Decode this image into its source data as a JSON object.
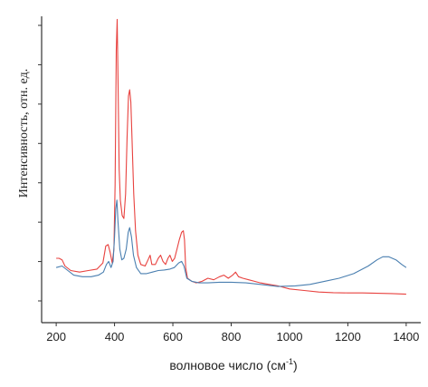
{
  "chart_data": {
    "type": "line",
    "title": "",
    "xlabel": "волновое число (см",
    "xlabel_sup": "-1",
    "xlabel_close": ")",
    "ylabel": "Интенсивность, отн. ед.",
    "xlim": [
      150,
      1450
    ],
    "ylim": [
      0,
      10
    ],
    "x_ticks": [
      200,
      400,
      600,
      800,
      1000,
      1200,
      1400
    ],
    "x_tick_labels": [
      "200",
      "400",
      "600",
      "800",
      "1000",
      "1200",
      "1400"
    ],
    "y_tick_count": 8,
    "y_tick_labels_shown": false,
    "grid": false,
    "legend": "none",
    "series": [
      {
        "color": "#e8423f",
        "points": [
          [
            200,
            2.1
          ],
          [
            210,
            2.1
          ],
          [
            220,
            2.05
          ],
          [
            230,
            1.85
          ],
          [
            250,
            1.7
          ],
          [
            280,
            1.65
          ],
          [
            310,
            1.7
          ],
          [
            340,
            1.75
          ],
          [
            360,
            1.95
          ],
          [
            370,
            2.5
          ],
          [
            378,
            2.55
          ],
          [
            385,
            2.3
          ],
          [
            392,
            1.95
          ],
          [
            398,
            2.4
          ],
          [
            402,
            4.5
          ],
          [
            406,
            8.9
          ],
          [
            409,
            9.9
          ],
          [
            412,
            8.0
          ],
          [
            416,
            5.0
          ],
          [
            420,
            4.0
          ],
          [
            426,
            3.5
          ],
          [
            432,
            3.4
          ],
          [
            438,
            4.2
          ],
          [
            443,
            6.0
          ],
          [
            448,
            7.4
          ],
          [
            452,
            7.6
          ],
          [
            456,
            7.2
          ],
          [
            460,
            6.0
          ],
          [
            466,
            4.2
          ],
          [
            472,
            3.0
          ],
          [
            480,
            2.2
          ],
          [
            490,
            1.9
          ],
          [
            505,
            1.85
          ],
          [
            515,
            2.05
          ],
          [
            522,
            2.2
          ],
          [
            528,
            1.9
          ],
          [
            540,
            1.9
          ],
          [
            550,
            2.1
          ],
          [
            558,
            2.2
          ],
          [
            566,
            2.0
          ],
          [
            575,
            1.9
          ],
          [
            583,
            2.1
          ],
          [
            590,
            2.2
          ],
          [
            598,
            2.0
          ],
          [
            606,
            2.1
          ],
          [
            614,
            2.4
          ],
          [
            622,
            2.7
          ],
          [
            630,
            2.95
          ],
          [
            636,
            3.0
          ],
          [
            640,
            2.7
          ],
          [
            644,
            1.8
          ],
          [
            650,
            1.45
          ],
          [
            665,
            1.35
          ],
          [
            680,
            1.3
          ],
          [
            700,
            1.35
          ],
          [
            720,
            1.45
          ],
          [
            740,
            1.4
          ],
          [
            760,
            1.5
          ],
          [
            775,
            1.55
          ],
          [
            790,
            1.45
          ],
          [
            805,
            1.55
          ],
          [
            815,
            1.65
          ],
          [
            825,
            1.5
          ],
          [
            840,
            1.45
          ],
          [
            860,
            1.4
          ],
          [
            880,
            1.35
          ],
          [
            900,
            1.3
          ],
          [
            930,
            1.25
          ],
          [
            960,
            1.2
          ],
          [
            1000,
            1.1
          ],
          [
            1050,
            1.05
          ],
          [
            1100,
            1.0
          ],
          [
            1150,
            0.98
          ],
          [
            1200,
            0.97
          ],
          [
            1250,
            0.97
          ],
          [
            1300,
            0.96
          ],
          [
            1350,
            0.95
          ],
          [
            1400,
            0.93
          ]
        ]
      },
      {
        "color": "#4a7fb0",
        "points": [
          [
            200,
            1.8
          ],
          [
            220,
            1.85
          ],
          [
            240,
            1.7
          ],
          [
            260,
            1.55
          ],
          [
            290,
            1.5
          ],
          [
            320,
            1.5
          ],
          [
            345,
            1.55
          ],
          [
            362,
            1.65
          ],
          [
            372,
            1.9
          ],
          [
            380,
            2.0
          ],
          [
            388,
            1.8
          ],
          [
            395,
            2.0
          ],
          [
            400,
            2.8
          ],
          [
            404,
            3.7
          ],
          [
            408,
            4.0
          ],
          [
            412,
            3.3
          ],
          [
            418,
            2.4
          ],
          [
            425,
            2.05
          ],
          [
            432,
            2.1
          ],
          [
            440,
            2.4
          ],
          [
            447,
            2.95
          ],
          [
            452,
            3.1
          ],
          [
            458,
            2.8
          ],
          [
            465,
            2.2
          ],
          [
            475,
            1.8
          ],
          [
            490,
            1.6
          ],
          [
            510,
            1.6
          ],
          [
            530,
            1.65
          ],
          [
            550,
            1.7
          ],
          [
            570,
            1.72
          ],
          [
            590,
            1.75
          ],
          [
            605,
            1.8
          ],
          [
            620,
            1.95
          ],
          [
            630,
            2.0
          ],
          [
            638,
            1.85
          ],
          [
            648,
            1.45
          ],
          [
            665,
            1.35
          ],
          [
            690,
            1.3
          ],
          [
            720,
            1.3
          ],
          [
            760,
            1.32
          ],
          [
            800,
            1.32
          ],
          [
            850,
            1.3
          ],
          [
            900,
            1.25
          ],
          [
            960,
            1.18
          ],
          [
            1020,
            1.2
          ],
          [
            1070,
            1.25
          ],
          [
            1120,
            1.35
          ],
          [
            1170,
            1.45
          ],
          [
            1220,
            1.6
          ],
          [
            1270,
            1.85
          ],
          [
            1300,
            2.05
          ],
          [
            1320,
            2.15
          ],
          [
            1340,
            2.15
          ],
          [
            1365,
            2.05
          ],
          [
            1385,
            1.9
          ],
          [
            1400,
            1.8
          ]
        ]
      }
    ]
  }
}
